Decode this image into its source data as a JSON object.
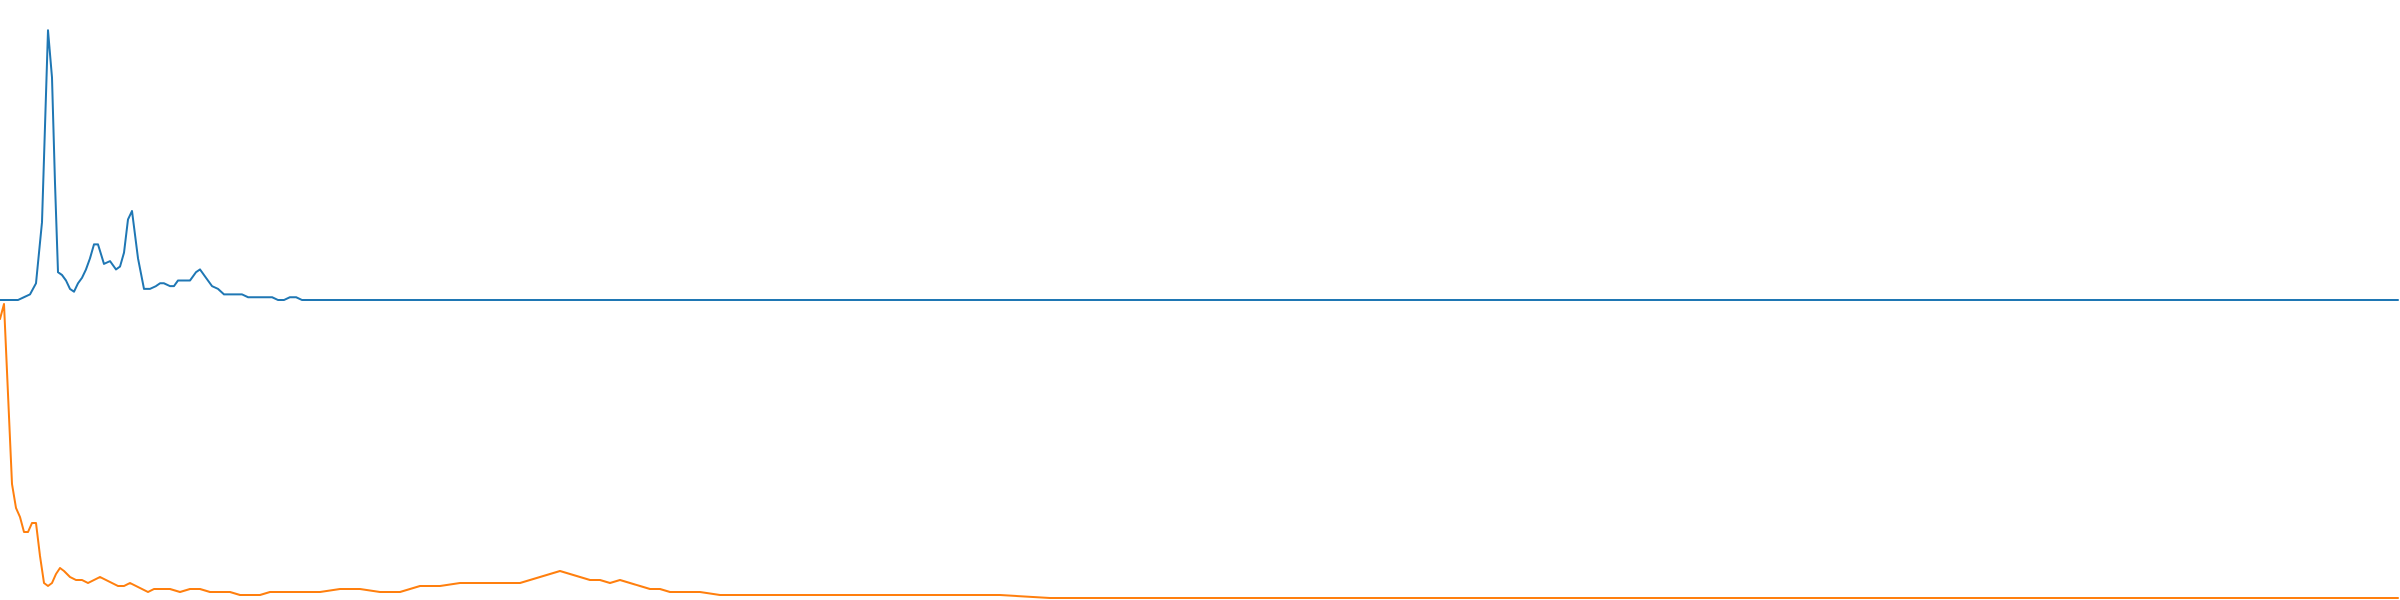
{
  "chart_data": [
    {
      "type": "line",
      "title": "",
      "xlabel": "",
      "ylabel": "",
      "grid": false,
      "legend": "none",
      "xlim": [
        0,
        2400
      ],
      "ylim": [
        0,
        1
      ],
      "series": [
        {
          "color": "#1f77b4",
          "x": [
            0,
            18,
            24,
            30,
            36,
            42,
            48,
            52,
            55,
            58,
            62,
            66,
            70,
            74,
            78,
            82,
            86,
            90,
            94,
            98,
            104,
            110,
            116,
            120,
            124,
            128,
            132,
            138,
            144,
            150,
            156,
            160,
            164,
            170,
            174,
            178,
            184,
            190,
            196,
            200,
            206,
            212,
            218,
            224,
            230,
            236,
            242,
            248,
            254,
            260,
            266,
            272,
            278,
            284,
            290,
            296,
            302,
            306,
            312,
            318,
            324,
            330,
            336,
            342,
            348,
            360,
            380,
            400,
            420,
            440,
            460,
            480,
            500,
            520,
            540,
            560,
            580,
            600,
            620,
            640,
            660,
            680,
            700,
            720,
            740,
            760,
            780,
            800,
            820,
            840,
            860,
            880,
            900,
            920,
            940,
            960,
            980,
            1000,
            1050,
            1100,
            1150,
            1200,
            1300,
            1400,
            1500,
            1600,
            1700,
            1800,
            1900,
            2000,
            2100,
            2200,
            2300,
            2398
          ],
          "values": [
            0.0,
            0.0,
            0.01,
            0.02,
            0.06,
            0.28,
            0.97,
            0.8,
            0.42,
            0.1,
            0.09,
            0.07,
            0.04,
            0.03,
            0.06,
            0.08,
            0.11,
            0.15,
            0.2,
            0.2,
            0.13,
            0.14,
            0.11,
            0.12,
            0.17,
            0.29,
            0.32,
            0.15,
            0.04,
            0.04,
            0.05,
            0.06,
            0.06,
            0.05,
            0.05,
            0.07,
            0.07,
            0.07,
            0.1,
            0.11,
            0.08,
            0.05,
            0.04,
            0.02,
            0.02,
            0.02,
            0.02,
            0.01,
            0.01,
            0.01,
            0.01,
            0.01,
            0.0,
            0.0,
            0.01,
            0.01,
            0.0,
            0.0,
            0.0,
            0.0,
            0.0,
            0.0,
            0.0,
            0.0,
            0.0,
            0.0,
            0.0,
            0.0,
            0.0,
            0.0,
            0.0,
            0.0,
            0.0,
            0.0,
            0.0,
            0.0,
            0.0,
            0.0,
            0.0,
            0.0,
            0.0,
            0.0,
            0.0,
            0.0,
            0.0,
            0.0,
            0.0,
            0.0,
            0.0,
            0.0,
            0.0,
            0.0,
            0.0,
            0.0,
            0.0,
            0.0,
            0.0,
            0.0,
            0.0,
            0.0,
            0.0,
            0.0,
            0.0,
            0.0,
            0.0,
            0.0,
            0.0,
            0.0,
            0.0,
            0.0,
            0.0,
            0.0,
            0.0,
            0.0
          ]
        }
      ]
    },
    {
      "type": "line",
      "title": "",
      "xlabel": "",
      "ylabel": "",
      "grid": false,
      "legend": "none",
      "xlim": [
        0,
        2400
      ],
      "ylim": [
        0,
        1
      ],
      "series": [
        {
          "color": "#ff7f0e",
          "x": [
            0,
            4,
            8,
            12,
            16,
            20,
            24,
            28,
            32,
            36,
            40,
            44,
            48,
            52,
            56,
            60,
            64,
            70,
            76,
            82,
            88,
            94,
            100,
            106,
            112,
            118,
            124,
            130,
            136,
            142,
            148,
            154,
            160,
            170,
            180,
            190,
            200,
            210,
            220,
            230,
            240,
            250,
            260,
            270,
            280,
            290,
            300,
            320,
            340,
            360,
            380,
            400,
            420,
            440,
            460,
            480,
            500,
            520,
            540,
            550,
            560,
            570,
            580,
            590,
            600,
            610,
            620,
            630,
            640,
            650,
            660,
            670,
            680,
            690,
            700,
            720,
            740,
            760,
            780,
            800,
            820,
            840,
            860,
            880,
            900,
            920,
            940,
            960,
            980,
            1000,
            1050,
            1100,
            1150,
            1200,
            1250,
            1300,
            1400,
            1500,
            1600,
            1700,
            1800,
            1900,
            2000,
            2100,
            2200,
            2300,
            2398
          ],
          "values": [
            0.93,
            0.98,
            0.68,
            0.38,
            0.3,
            0.27,
            0.22,
            0.22,
            0.25,
            0.25,
            0.14,
            0.05,
            0.04,
            0.05,
            0.08,
            0.1,
            0.09,
            0.07,
            0.06,
            0.06,
            0.05,
            0.06,
            0.07,
            0.06,
            0.05,
            0.04,
            0.04,
            0.05,
            0.04,
            0.03,
            0.02,
            0.03,
            0.03,
            0.03,
            0.02,
            0.03,
            0.03,
            0.02,
            0.02,
            0.02,
            0.01,
            0.01,
            0.01,
            0.02,
            0.02,
            0.02,
            0.02,
            0.02,
            0.03,
            0.03,
            0.02,
            0.02,
            0.04,
            0.04,
            0.05,
            0.05,
            0.05,
            0.05,
            0.07,
            0.08,
            0.09,
            0.08,
            0.07,
            0.06,
            0.06,
            0.05,
            0.06,
            0.05,
            0.04,
            0.03,
            0.03,
            0.02,
            0.02,
            0.02,
            0.02,
            0.01,
            0.01,
            0.01,
            0.01,
            0.01,
            0.01,
            0.01,
            0.01,
            0.01,
            0.01,
            0.01,
            0.01,
            0.01,
            0.01,
            0.01,
            0.0,
            0.0,
            0.0,
            0.0,
            0.0,
            0.0,
            0.0,
            0.0,
            0.0,
            0.0,
            0.0,
            0.0,
            0.0,
            0.0,
            0.0,
            0.0,
            0.0
          ]
        }
      ]
    }
  ]
}
